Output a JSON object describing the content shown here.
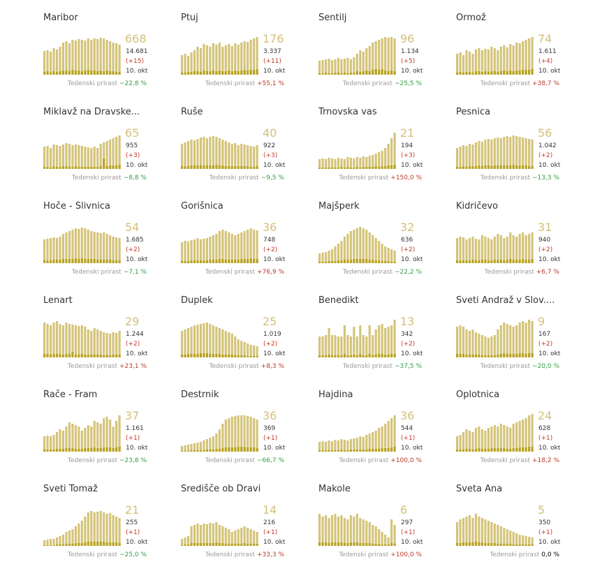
{
  "date_label": "10. okt",
  "growth_label": "Tedenski prirast",
  "colors": {
    "bar": "#d4c47a",
    "bar_new": "#b8a21e",
    "accent": "#d4c07a",
    "positive": "#b83a2a",
    "negative": "#2ea043"
  },
  "chart_data": [
    {
      "type": "bar",
      "title": "Maribor",
      "value": "668",
      "total": "14.681",
      "delta": "(+15)",
      "growth": "−22,8 %",
      "growth_dir": "neg",
      "values": [
        34,
        35,
        33,
        38,
        36,
        40,
        46,
        48,
        45,
        50,
        49,
        51,
        50,
        49,
        52,
        50,
        52,
        51,
        53,
        52,
        50,
        48,
        46,
        45,
        43
      ],
      "new": [
        4,
        5,
        3,
        5,
        4,
        5,
        6,
        6,
        5,
        7,
        6,
        6,
        5,
        6,
        7,
        6,
        6,
        5,
        6,
        5,
        6,
        5,
        5,
        4,
        4
      ]
    },
    {
      "type": "bar",
      "title": "Ptuj",
      "value": "176",
      "total": "3.337",
      "delta": "(+11)",
      "growth": "+55,1 %",
      "growth_dir": "pos",
      "values": [
        28,
        30,
        27,
        32,
        35,
        40,
        38,
        44,
        42,
        40,
        45,
        43,
        46,
        40,
        42,
        44,
        41,
        45,
        43,
        46,
        48,
        47,
        50,
        52,
        54
      ],
      "new": [
        3,
        3,
        4,
        4,
        5,
        5,
        4,
        6,
        5,
        5,
        6,
        5,
        6,
        5,
        5,
        6,
        5,
        6,
        5,
        6,
        7,
        6,
        7,
        7,
        8
      ]
    },
    {
      "type": "bar",
      "title": "Šentilj",
      "value": "96",
      "total": "1.134",
      "delta": "(+5)",
      "growth": "−25,5 %",
      "growth_dir": "neg",
      "values": [
        20,
        21,
        22,
        23,
        21,
        22,
        24,
        22,
        23,
        24,
        22,
        25,
        30,
        35,
        33,
        38,
        41,
        46,
        48,
        50,
        52,
        54,
        53,
        54,
        52
      ],
      "new": [
        2,
        2,
        3,
        2,
        2,
        3,
        3,
        2,
        3,
        2,
        3,
        3,
        5,
        4,
        5,
        6,
        5,
        7,
        8,
        7,
        8,
        6,
        5,
        6,
        5
      ]
    },
    {
      "type": "bar",
      "title": "Ormož",
      "value": "74",
      "total": "1.611",
      "delta": "(+4)",
      "growth": "+38,7 %",
      "growth_dir": "pos",
      "values": [
        30,
        32,
        28,
        35,
        33,
        30,
        36,
        38,
        35,
        37,
        36,
        40,
        38,
        35,
        40,
        42,
        39,
        44,
        42,
        46,
        45,
        48,
        50,
        52,
        54
      ],
      "new": [
        3,
        4,
        3,
        4,
        4,
        3,
        5,
        5,
        4,
        5,
        4,
        5,
        5,
        4,
        5,
        6,
        5,
        6,
        5,
        6,
        6,
        7,
        7,
        7,
        8
      ]
    },
    {
      "type": "bar",
      "title": "Miklavž na Dravske...",
      "value": "65",
      "total": "955",
      "delta": "(+3)",
      "growth": "−8,8 %",
      "growth_dir": "neg",
      "values": [
        32,
        33,
        30,
        35,
        34,
        33,
        35,
        37,
        36,
        34,
        35,
        34,
        33,
        32,
        31,
        30,
        32,
        30,
        36,
        38,
        40,
        42,
        44,
        46,
        48
      ],
      "new": [
        3,
        3,
        2,
        4,
        3,
        3,
        4,
        4,
        3,
        3,
        4,
        3,
        3,
        3,
        3,
        3,
        3,
        3,
        4,
        15,
        4,
        5,
        5,
        5,
        6
      ]
    },
    {
      "type": "bar",
      "title": "Ruše",
      "value": "40",
      "total": "922",
      "delta": "(+3)",
      "growth": "−9,5 %",
      "growth_dir": "neg",
      "values": [
        36,
        38,
        40,
        42,
        41,
        43,
        45,
        46,
        44,
        46,
        47,
        46,
        44,
        42,
        40,
        38,
        36,
        37,
        34,
        36,
        35,
        34,
        33,
        32,
        34
      ],
      "new": [
        4,
        4,
        4,
        5,
        5,
        5,
        5,
        5,
        5,
        5,
        5,
        6,
        5,
        5,
        4,
        4,
        4,
        4,
        4,
        4,
        4,
        4,
        3,
        3,
        4
      ]
    },
    {
      "type": "bar",
      "title": "Trnovska vas",
      "value": "21",
      "total": "194",
      "delta": "(+3)",
      "growth": "+150,0 %",
      "growth_dir": "pos",
      "values": [
        14,
        15,
        14,
        16,
        15,
        14,
        16,
        15,
        14,
        17,
        16,
        15,
        17,
        16,
        18,
        17,
        19,
        20,
        22,
        24,
        26,
        30,
        36,
        44,
        52
      ],
      "new": [
        2,
        2,
        2,
        2,
        2,
        2,
        2,
        3,
        2,
        3,
        2,
        2,
        3,
        2,
        3,
        3,
        3,
        3,
        4,
        3,
        4,
        4,
        5,
        5,
        6
      ]
    },
    {
      "type": "bar",
      "title": "Pesnica",
      "value": "56",
      "total": "1.042",
      "delta": "(+2)",
      "growth": "−13,3 %",
      "growth_dir": "neg",
      "values": [
        30,
        32,
        34,
        33,
        36,
        35,
        38,
        40,
        39,
        42,
        43,
        42,
        44,
        45,
        44,
        46,
        47,
        46,
        48,
        47,
        46,
        45,
        44,
        43,
        42
      ],
      "new": [
        3,
        3,
        4,
        3,
        4,
        4,
        4,
        5,
        4,
        5,
        5,
        4,
        5,
        5,
        5,
        5,
        5,
        5,
        6,
        5,
        5,
        5,
        5,
        4,
        4
      ]
    },
    {
      "type": "bar",
      "title": "Hoče - Slivnica",
      "value": "54",
      "total": "1.685",
      "delta": "(+2)",
      "growth": "−7,1 %",
      "growth_dir": "neg",
      "values": [
        34,
        35,
        36,
        37,
        36,
        38,
        42,
        44,
        46,
        48,
        50,
        49,
        51,
        50,
        48,
        46,
        45,
        44,
        43,
        44,
        42,
        40,
        38,
        37,
        36
      ],
      "new": [
        4,
        4,
        4,
        5,
        5,
        5,
        6,
        6,
        6,
        6,
        7,
        6,
        7,
        6,
        6,
        6,
        6,
        5,
        5,
        5,
        5,
        5,
        4,
        4,
        4
      ]
    },
    {
      "type": "bar",
      "title": "Gorišnica",
      "value": "36",
      "total": "748",
      "delta": "(+2)",
      "growth": "+76,9 %",
      "growth_dir": "pos",
      "values": [
        30,
        32,
        31,
        33,
        34,
        36,
        34,
        35,
        36,
        38,
        40,
        42,
        46,
        48,
        46,
        44,
        42,
        40,
        42,
        44,
        46,
        48,
        50,
        48,
        47
      ],
      "new": [
        3,
        3,
        3,
        4,
        4,
        4,
        4,
        4,
        4,
        5,
        5,
        5,
        6,
        6,
        5,
        5,
        5,
        5,
        5,
        6,
        6,
        6,
        7,
        6,
        6
      ]
    },
    {
      "type": "bar",
      "title": "Majšperk",
      "value": "32",
      "total": "636",
      "delta": "(+2)",
      "growth": "−22,2 %",
      "growth_dir": "neg",
      "values": [
        14,
        15,
        16,
        18,
        20,
        24,
        28,
        32,
        38,
        42,
        46,
        48,
        50,
        52,
        50,
        48,
        44,
        40,
        36,
        32,
        28,
        24,
        22,
        20,
        18
      ],
      "new": [
        2,
        2,
        2,
        3,
        3,
        3,
        4,
        4,
        5,
        5,
        5,
        6,
        6,
        6,
        6,
        6,
        5,
        5,
        4,
        4,
        3,
        3,
        3,
        2,
        2
      ]
    },
    {
      "type": "bar",
      "title": "Kidričevo",
      "value": "31",
      "total": "940",
      "delta": "(+2)",
      "growth": "+6,7 %",
      "growth_dir": "pos",
      "values": [
        36,
        38,
        37,
        34,
        36,
        38,
        35,
        34,
        40,
        38,
        36,
        34,
        38,
        42,
        40,
        36,
        38,
        44,
        40,
        38,
        42,
        44,
        40,
        42,
        44
      ],
      "new": [
        4,
        4,
        4,
        4,
        4,
        5,
        4,
        4,
        5,
        5,
        4,
        4,
        5,
        5,
        5,
        4,
        5,
        6,
        5,
        5,
        5,
        6,
        5,
        5,
        6
      ]
    },
    {
      "type": "bar",
      "title": "Lenart",
      "value": "29",
      "total": "1.244",
      "delta": "(+2)",
      "growth": "+23,1 %",
      "growth_dir": "pos",
      "values": [
        50,
        48,
        46,
        50,
        52,
        48,
        46,
        50,
        48,
        47,
        46,
        45,
        46,
        44,
        40,
        38,
        42,
        40,
        38,
        36,
        35,
        34,
        36,
        35,
        38
      ],
      "new": [
        5,
        5,
        4,
        5,
        5,
        5,
        4,
        5,
        5,
        8,
        4,
        4,
        5,
        4,
        4,
        4,
        4,
        4,
        4,
        3,
        4,
        3,
        4,
        4,
        4
      ]
    },
    {
      "type": "bar",
      "title": "Duplek",
      "value": "25",
      "total": "1.019",
      "delta": "(+2)",
      "growth": "+8,3 %",
      "growth_dir": "pos",
      "values": [
        38,
        40,
        42,
        44,
        46,
        47,
        48,
        49,
        50,
        48,
        46,
        44,
        42,
        40,
        38,
        36,
        34,
        30,
        26,
        24,
        22,
        20,
        18,
        17,
        16
      ],
      "new": [
        4,
        4,
        5,
        5,
        5,
        5,
        6,
        6,
        6,
        5,
        5,
        5,
        5,
        4,
        4,
        4,
        4,
        3,
        3,
        3,
        3,
        2,
        2,
        2,
        2
      ]
    },
    {
      "type": "bar",
      "title": "Benedikt",
      "value": "13",
      "total": "342",
      "delta": "(+2)",
      "growth": "−37,5 %",
      "growth_dir": "neg",
      "values": [
        30,
        30,
        32,
        42,
        32,
        32,
        30,
        30,
        46,
        32,
        30,
        44,
        30,
        46,
        32,
        30,
        46,
        32,
        40,
        46,
        48,
        42,
        44,
        46,
        54
      ],
      "new": [
        3,
        3,
        3,
        4,
        3,
        3,
        3,
        3,
        5,
        3,
        3,
        4,
        3,
        5,
        3,
        3,
        5,
        3,
        4,
        5,
        5,
        4,
        4,
        5,
        5
      ]
    },
    {
      "type": "bar",
      "title": "Sveti Andraž v Slov....",
      "value": "9",
      "total": "167",
      "delta": "(+2)",
      "growth": "−20,0 %",
      "growth_dir": "neg",
      "values": [
        44,
        46,
        44,
        40,
        38,
        40,
        36,
        34,
        32,
        30,
        28,
        30,
        32,
        40,
        46,
        50,
        48,
        46,
        44,
        46,
        50,
        52,
        50,
        54,
        52
      ],
      "new": [
        5,
        5,
        5,
        4,
        4,
        4,
        4,
        4,
        3,
        3,
        3,
        3,
        3,
        4,
        5,
        6,
        5,
        5,
        5,
        5,
        6,
        6,
        5,
        6,
        6
      ]
    },
    {
      "type": "bar",
      "title": "Rače - Fram",
      "value": "37",
      "total": "1.161",
      "delta": "(+1)",
      "growth": "−23,8 %",
      "growth_dir": "neg",
      "values": [
        22,
        23,
        22,
        24,
        28,
        32,
        30,
        36,
        42,
        40,
        38,
        36,
        30,
        34,
        38,
        36,
        44,
        42,
        40,
        48,
        50,
        46,
        36,
        44,
        52
      ],
      "new": [
        3,
        3,
        3,
        3,
        4,
        4,
        4,
        5,
        5,
        5,
        4,
        4,
        4,
        5,
        5,
        5,
        6,
        5,
        5,
        6,
        6,
        6,
        5,
        6,
        7
      ]
    },
    {
      "type": "bar",
      "title": "Destrnik",
      "value": "36",
      "total": "369",
      "delta": "(+1)",
      "growth": "−66,7 %",
      "growth_dir": "neg",
      "values": [
        8,
        9,
        10,
        11,
        12,
        13,
        14,
        16,
        18,
        20,
        22,
        26,
        32,
        40,
        46,
        48,
        50,
        51,
        52,
        52,
        52,
        51,
        50,
        48,
        46
      ],
      "new": [
        1,
        1,
        1,
        2,
        2,
        2,
        2,
        2,
        3,
        3,
        3,
        4,
        4,
        5,
        6,
        6,
        6,
        6,
        7,
        7,
        7,
        6,
        6,
        6,
        5
      ]
    },
    {
      "type": "bar",
      "title": "Hajdina",
      "value": "36",
      "total": "544",
      "delta": "(+1)",
      "growth": "+100,0 %",
      "growth_dir": "pos",
      "values": [
        14,
        15,
        14,
        16,
        15,
        17,
        16,
        18,
        17,
        16,
        18,
        19,
        20,
        22,
        21,
        24,
        26,
        28,
        30,
        34,
        36,
        40,
        44,
        48,
        52
      ],
      "new": [
        2,
        2,
        2,
        2,
        2,
        2,
        2,
        3,
        2,
        2,
        3,
        3,
        3,
        3,
        3,
        3,
        4,
        4,
        4,
        4,
        5,
        5,
        5,
        6,
        7
      ]
    },
    {
      "type": "bar",
      "title": "Oplotnica",
      "value": "24",
      "total": "628",
      "delta": "(+1)",
      "growth": "+18,2 %",
      "growth_dir": "pos",
      "values": [
        22,
        24,
        28,
        32,
        30,
        28,
        34,
        36,
        32,
        30,
        34,
        36,
        38,
        36,
        40,
        38,
        36,
        34,
        40,
        42,
        44,
        46,
        48,
        52,
        54
      ],
      "new": [
        3,
        3,
        3,
        4,
        4,
        3,
        4,
        5,
        4,
        4,
        4,
        5,
        5,
        5,
        5,
        5,
        4,
        4,
        5,
        5,
        6,
        6,
        6,
        7,
        7
      ]
    },
    {
      "type": "bar",
      "title": "Sveti Tomaž",
      "value": "21",
      "total": "255",
      "delta": "(+1)",
      "growth": "−25,0 %",
      "growth_dir": "neg",
      "values": [
        8,
        9,
        10,
        10,
        12,
        14,
        16,
        20,
        22,
        24,
        28,
        32,
        36,
        42,
        48,
        50,
        48,
        49,
        50,
        48,
        46,
        47,
        44,
        42,
        40
      ],
      "new": [
        1,
        1,
        1,
        1,
        2,
        2,
        2,
        3,
        3,
        3,
        4,
        4,
        4,
        5,
        6,
        6,
        6,
        6,
        6,
        6,
        5,
        5,
        5,
        5,
        4
      ]
    },
    {
      "type": "bar",
      "title": "Središče ob Dravi",
      "value": "14",
      "total": "216",
      "delta": "(+1)",
      "growth": "+33,3 %",
      "growth_dir": "pos",
      "values": [
        10,
        12,
        14,
        28,
        30,
        32,
        30,
        32,
        31,
        33,
        32,
        34,
        30,
        28,
        26,
        24,
        20,
        22,
        24,
        26,
        28,
        26,
        24,
        22,
        20
      ],
      "new": [
        1,
        2,
        2,
        4,
        4,
        4,
        4,
        4,
        4,
        4,
        4,
        5,
        4,
        4,
        3,
        3,
        3,
        3,
        3,
        3,
        4,
        3,
        3,
        3,
        3
      ]
    },
    {
      "type": "bar",
      "title": "Makole",
      "value": "6",
      "total": "297",
      "delta": "(+1)",
      "growth": "+100,0 %",
      "growth_dir": "pos",
      "values": [
        46,
        42,
        44,
        40,
        44,
        46,
        42,
        44,
        40,
        38,
        44,
        42,
        46,
        40,
        38,
        36,
        34,
        30,
        28,
        24,
        20,
        16,
        12,
        38,
        30
      ],
      "new": [
        5,
        5,
        5,
        4,
        5,
        5,
        5,
        5,
        4,
        4,
        5,
        5,
        5,
        4,
        4,
        4,
        4,
        3,
        3,
        3,
        2,
        2,
        2,
        4,
        3
      ]
    },
    {
      "type": "bar",
      "title": "Sveta Ana",
      "value": "5",
      "total": "350",
      "delta": "(+1)",
      "growth": "0,0 %",
      "growth_dir": "none",
      "values": [
        34,
        38,
        40,
        42,
        44,
        40,
        46,
        42,
        40,
        38,
        36,
        34,
        32,
        30,
        28,
        26,
        24,
        22,
        20,
        18,
        16,
        15,
        14,
        13,
        12
      ],
      "new": [
        4,
        4,
        5,
        5,
        5,
        5,
        6,
        5,
        5,
        4,
        4,
        4,
        4,
        3,
        3,
        3,
        3,
        3,
        2,
        2,
        2,
        2,
        2,
        2,
        2
      ]
    }
  ]
}
